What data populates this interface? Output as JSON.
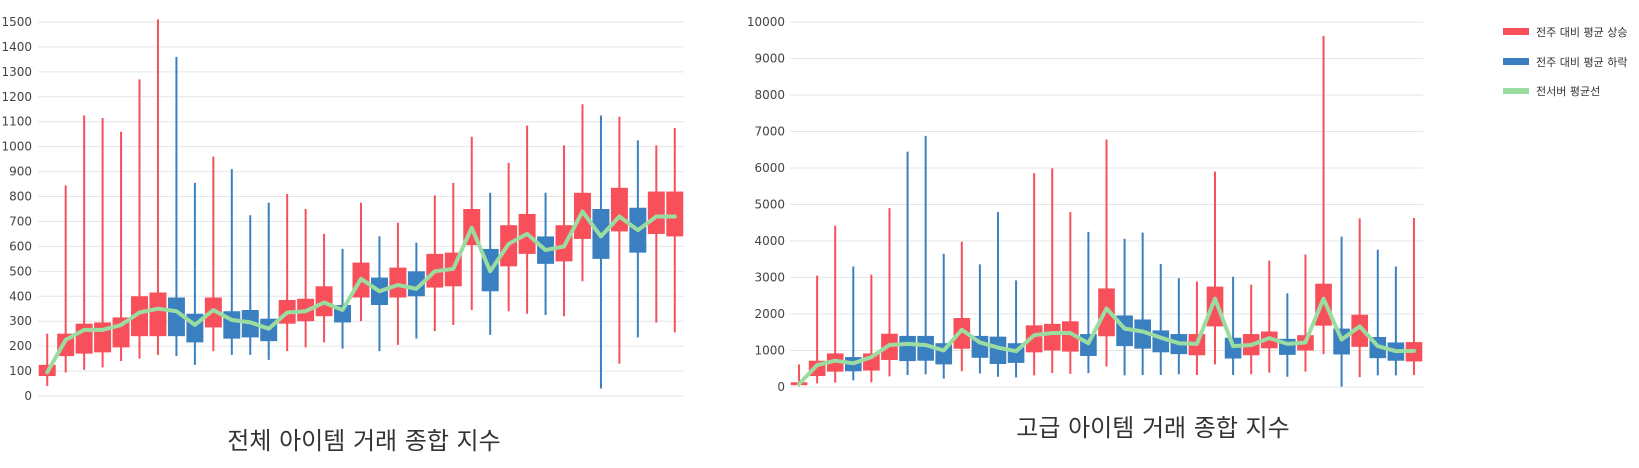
{
  "legend": [
    {
      "key": "up",
      "label": "전주 대비 평균 상승",
      "color": "#F8505A"
    },
    {
      "key": "down",
      "label": "전주 대비 평균 하락",
      "color": "#3A80C0"
    },
    {
      "key": "avg",
      "label": "전서버 평균선",
      "color": "#9BDDA0"
    }
  ],
  "legend_placement": "top-right",
  "colors": {
    "up": "#F8505A",
    "down": "#3A80C0",
    "avg": "#9BDDA0",
    "grid": "#E6E6E6"
  },
  "chart_data": [
    {
      "type": "candlestick",
      "title": "전체 아이템 거래 종합 지수",
      "xlabel": "",
      "ylabel": "",
      "ylim": [
        0,
        1500
      ],
      "ytick_step": 100,
      "grid": true,
      "candles": [
        {
          "open": 80,
          "close": 125,
          "low": 40,
          "high": 250,
          "dir": "up"
        },
        {
          "open": 160,
          "close": 250,
          "low": 95,
          "high": 845,
          "dir": "up"
        },
        {
          "open": 170,
          "close": 290,
          "low": 105,
          "high": 1125,
          "dir": "up"
        },
        {
          "open": 175,
          "close": 295,
          "low": 115,
          "high": 1115,
          "dir": "up"
        },
        {
          "open": 195,
          "close": 315,
          "low": 140,
          "high": 1060,
          "dir": "up"
        },
        {
          "open": 240,
          "close": 400,
          "low": 150,
          "high": 1270,
          "dir": "up"
        },
        {
          "open": 240,
          "close": 415,
          "low": 165,
          "high": 1510,
          "dir": "up"
        },
        {
          "open": 395,
          "close": 240,
          "low": 160,
          "high": 1360,
          "dir": "down"
        },
        {
          "open": 330,
          "close": 215,
          "low": 125,
          "high": 855,
          "dir": "down"
        },
        {
          "open": 275,
          "close": 395,
          "low": 180,
          "high": 960,
          "dir": "up"
        },
        {
          "open": 340,
          "close": 230,
          "low": 165,
          "high": 910,
          "dir": "down"
        },
        {
          "open": 345,
          "close": 235,
          "low": 165,
          "high": 725,
          "dir": "down"
        },
        {
          "open": 310,
          "close": 220,
          "low": 145,
          "high": 775,
          "dir": "down"
        },
        {
          "open": 290,
          "close": 385,
          "low": 180,
          "high": 810,
          "dir": "up"
        },
        {
          "open": 300,
          "close": 390,
          "low": 195,
          "high": 750,
          "dir": "up"
        },
        {
          "open": 320,
          "close": 440,
          "low": 215,
          "high": 650,
          "dir": "up"
        },
        {
          "open": 365,
          "close": 295,
          "low": 190,
          "high": 590,
          "dir": "down"
        },
        {
          "open": 395,
          "close": 535,
          "low": 300,
          "high": 775,
          "dir": "up"
        },
        {
          "open": 475,
          "close": 365,
          "low": 180,
          "high": 640,
          "dir": "down"
        },
        {
          "open": 395,
          "close": 515,
          "low": 205,
          "high": 695,
          "dir": "up"
        },
        {
          "open": 500,
          "close": 400,
          "low": 230,
          "high": 615,
          "dir": "down"
        },
        {
          "open": 435,
          "close": 570,
          "low": 260,
          "high": 805,
          "dir": "up"
        },
        {
          "open": 440,
          "close": 575,
          "low": 285,
          "high": 855,
          "dir": "up"
        },
        {
          "open": 605,
          "close": 750,
          "low": 345,
          "high": 1040,
          "dir": "up"
        },
        {
          "open": 590,
          "close": 420,
          "low": 245,
          "high": 815,
          "dir": "down"
        },
        {
          "open": 520,
          "close": 685,
          "low": 340,
          "high": 935,
          "dir": "up"
        },
        {
          "open": 570,
          "close": 730,
          "low": 330,
          "high": 1085,
          "dir": "up"
        },
        {
          "open": 640,
          "close": 530,
          "low": 325,
          "high": 815,
          "dir": "down"
        },
        {
          "open": 540,
          "close": 685,
          "low": 320,
          "high": 1005,
          "dir": "up"
        },
        {
          "open": 630,
          "close": 815,
          "low": 460,
          "high": 1170,
          "dir": "up"
        },
        {
          "open": 750,
          "close": 550,
          "low": 30,
          "high": 1125,
          "dir": "down"
        },
        {
          "open": 660,
          "close": 835,
          "low": 130,
          "high": 1120,
          "dir": "up"
        },
        {
          "open": 755,
          "close": 575,
          "low": 235,
          "high": 1025,
          "dir": "down"
        },
        {
          "open": 650,
          "close": 820,
          "low": 295,
          "high": 1005,
          "dir": "up"
        },
        {
          "open": 640,
          "close": 820,
          "low": 255,
          "high": 1075,
          "dir": "up"
        }
      ],
      "avg_line": [
        95,
        225,
        265,
        265,
        285,
        335,
        350,
        340,
        285,
        345,
        305,
        295,
        270,
        335,
        340,
        375,
        345,
        470,
        420,
        445,
        430,
        500,
        510,
        675,
        500,
        610,
        650,
        585,
        600,
        740,
        640,
        720,
        665,
        720,
        720
      ]
    },
    {
      "type": "candlestick",
      "title": "고급 아이템 거래 종합 지수",
      "xlabel": "",
      "ylabel": "",
      "ylim": [
        0,
        10000
      ],
      "ytick_step": 1000,
      "grid": true,
      "candles": [
        {
          "open": 50,
          "close": 130,
          "low": 20,
          "high": 620,
          "dir": "up"
        },
        {
          "open": 300,
          "close": 720,
          "low": 100,
          "high": 3050,
          "dir": "up"
        },
        {
          "open": 420,
          "close": 920,
          "low": 120,
          "high": 4420,
          "dir": "up"
        },
        {
          "open": 820,
          "close": 430,
          "low": 180,
          "high": 3300,
          "dir": "down"
        },
        {
          "open": 450,
          "close": 920,
          "low": 130,
          "high": 3080,
          "dir": "up"
        },
        {
          "open": 740,
          "close": 1460,
          "low": 290,
          "high": 4900,
          "dir": "up"
        },
        {
          "open": 1400,
          "close": 710,
          "low": 330,
          "high": 6450,
          "dir": "down"
        },
        {
          "open": 1400,
          "close": 720,
          "low": 350,
          "high": 6880,
          "dir": "down"
        },
        {
          "open": 1200,
          "close": 620,
          "low": 230,
          "high": 3650,
          "dir": "down"
        },
        {
          "open": 1050,
          "close": 1890,
          "low": 430,
          "high": 3980,
          "dir": "up"
        },
        {
          "open": 1400,
          "close": 800,
          "low": 370,
          "high": 3360,
          "dir": "down"
        },
        {
          "open": 1380,
          "close": 630,
          "low": 280,
          "high": 4790,
          "dir": "down"
        },
        {
          "open": 1200,
          "close": 660,
          "low": 260,
          "high": 2920,
          "dir": "down"
        },
        {
          "open": 950,
          "close": 1690,
          "low": 320,
          "high": 5860,
          "dir": "up"
        },
        {
          "open": 1000,
          "close": 1730,
          "low": 380,
          "high": 5990,
          "dir": "up"
        },
        {
          "open": 970,
          "close": 1800,
          "low": 360,
          "high": 4790,
          "dir": "up"
        },
        {
          "open": 1450,
          "close": 850,
          "low": 380,
          "high": 4250,
          "dir": "down"
        },
        {
          "open": 1390,
          "close": 2700,
          "low": 560,
          "high": 6780,
          "dir": "up"
        },
        {
          "open": 1960,
          "close": 1120,
          "low": 320,
          "high": 4060,
          "dir": "down"
        },
        {
          "open": 1850,
          "close": 1050,
          "low": 330,
          "high": 4230,
          "dir": "down"
        },
        {
          "open": 1550,
          "close": 950,
          "low": 330,
          "high": 3370,
          "dir": "down"
        },
        {
          "open": 1450,
          "close": 900,
          "low": 350,
          "high": 2980,
          "dir": "down"
        },
        {
          "open": 870,
          "close": 1450,
          "low": 330,
          "high": 2890,
          "dir": "up"
        },
        {
          "open": 1660,
          "close": 2750,
          "low": 620,
          "high": 5900,
          "dir": "up"
        },
        {
          "open": 1350,
          "close": 780,
          "low": 330,
          "high": 3020,
          "dir": "down"
        },
        {
          "open": 870,
          "close": 1450,
          "low": 350,
          "high": 2800,
          "dir": "up"
        },
        {
          "open": 1060,
          "close": 1520,
          "low": 390,
          "high": 3460,
          "dir": "up"
        },
        {
          "open": 1320,
          "close": 880,
          "low": 280,
          "high": 2570,
          "dir": "down"
        },
        {
          "open": 1000,
          "close": 1420,
          "low": 420,
          "high": 3630,
          "dir": "up"
        },
        {
          "open": 1680,
          "close": 2830,
          "low": 900,
          "high": 9620,
          "dir": "up"
        },
        {
          "open": 1600,
          "close": 890,
          "low": 10,
          "high": 4120,
          "dir": "down"
        },
        {
          "open": 1100,
          "close": 1980,
          "low": 270,
          "high": 4620,
          "dir": "up"
        },
        {
          "open": 1370,
          "close": 790,
          "low": 320,
          "high": 3760,
          "dir": "down"
        },
        {
          "open": 1220,
          "close": 720,
          "low": 320,
          "high": 3300,
          "dir": "down"
        },
        {
          "open": 700,
          "close": 1230,
          "low": 330,
          "high": 4630,
          "dir": "up"
        }
      ],
      "avg_line": [
        80,
        600,
        720,
        650,
        820,
        1150,
        1180,
        1150,
        1000,
        1570,
        1220,
        1080,
        980,
        1420,
        1480,
        1480,
        1200,
        2150,
        1600,
        1520,
        1350,
        1200,
        1180,
        2420,
        1120,
        1150,
        1340,
        1180,
        1220,
        2420,
        1300,
        1660,
        1120,
        980,
        990
      ]
    }
  ]
}
